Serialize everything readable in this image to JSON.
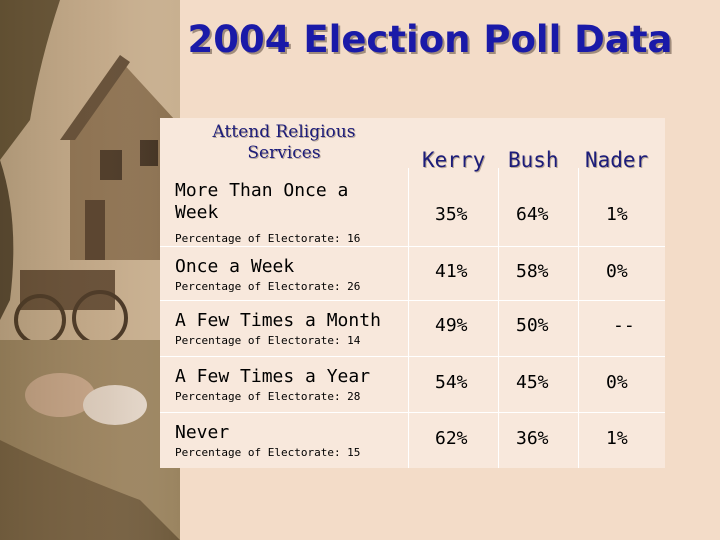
{
  "title": "2004 Election Poll Data",
  "header": {
    "category_label": "Attend Religious Services",
    "candidates": [
      "Kerry",
      "Bush",
      "Nader"
    ]
  },
  "rows": [
    {
      "category": "More Than Once a Week",
      "electorate": "Percentage of Electorate: 16",
      "kerry": "35%",
      "bush": "64%",
      "nader": "1%"
    },
    {
      "category": "Once a Week",
      "electorate": "Percentage of Electorate: 26",
      "kerry": "41%",
      "bush": "58%",
      "nader": "0%"
    },
    {
      "category": "A Few Times a Month",
      "electorate": "Percentage of Electorate: 14",
      "kerry": "49%",
      "bush": "50%",
      "nader": "--"
    },
    {
      "category": "A Few Times a Year",
      "electorate": "Percentage of Electorate: 28",
      "kerry": "54%",
      "bush": "45%",
      "nader": "0%"
    },
    {
      "category": "Never",
      "electorate": "Percentage of Electorate: 15",
      "kerry": "62%",
      "bush": "36%",
      "nader": "1%"
    }
  ],
  "colors": {
    "title": "#1a1aa8",
    "background": "#f3dcc8",
    "table": "#f8e8dc"
  }
}
